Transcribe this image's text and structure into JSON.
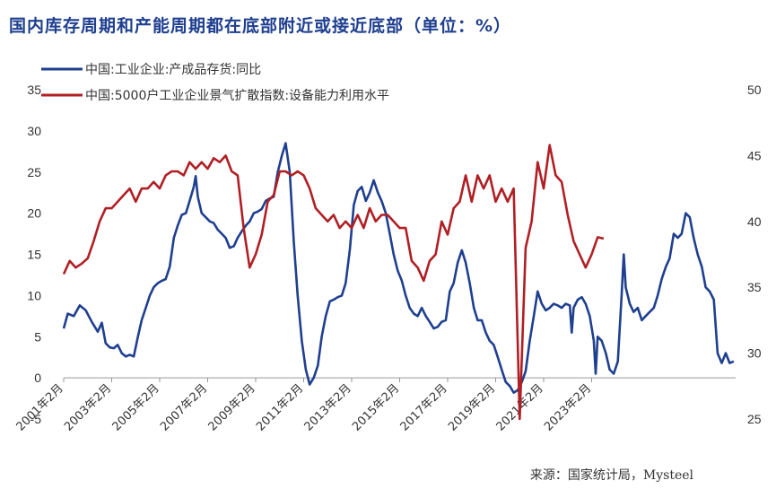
{
  "title": "国内库存周期和产能周期都在底部附近或接近底部（单位：%）",
  "source": "来源：国家统计局，Mysteel",
  "colors": {
    "series1": "#1f3f8f",
    "series2": "#b01f24",
    "axis": "#999999"
  },
  "chart_data": {
    "type": "line",
    "legend_placement": "top-left",
    "grid": false,
    "x_tick_labels": [
      "2001年2月",
      "2003年2月",
      "2005年2月",
      "2007年2月",
      "2009年2月",
      "2011年2月",
      "2013年2月",
      "2015年2月",
      "2017年2月",
      "2019年2月",
      "2021年2月",
      "2023年2月"
    ],
    "y_left": {
      "ylim": [
        -5,
        35
      ],
      "ticks": [
        -5,
        0,
        5,
        10,
        15,
        20,
        25,
        30,
        35
      ]
    },
    "y_right": {
      "ylim": [
        25,
        50
      ],
      "ticks": [
        25,
        30,
        35,
        40,
        45,
        50
      ]
    },
    "series": [
      {
        "name": "中国:工业企业:产成品存货:同比",
        "axis": "left",
        "points": [
          [
            2001.08,
            6.0
          ],
          [
            2001.25,
            7.8
          ],
          [
            2001.5,
            7.5
          ],
          [
            2001.75,
            8.8
          ],
          [
            2002.0,
            8.2
          ],
          [
            2002.25,
            6.8
          ],
          [
            2002.5,
            5.6
          ],
          [
            2002.67,
            6.7
          ],
          [
            2002.83,
            4.2
          ],
          [
            2003.0,
            3.7
          ],
          [
            2003.17,
            3.6
          ],
          [
            2003.33,
            4.0
          ],
          [
            2003.5,
            3.0
          ],
          [
            2003.67,
            2.6
          ],
          [
            2003.83,
            2.8
          ],
          [
            2004.0,
            2.6
          ],
          [
            2004.17,
            5.0
          ],
          [
            2004.33,
            7.0
          ],
          [
            2004.5,
            8.5
          ],
          [
            2004.67,
            10.0
          ],
          [
            2004.83,
            11.0
          ],
          [
            2005.0,
            11.5
          ],
          [
            2005.17,
            11.8
          ],
          [
            2005.33,
            12.0
          ],
          [
            2005.5,
            13.5
          ],
          [
            2005.67,
            17.0
          ],
          [
            2005.83,
            18.5
          ],
          [
            2006.0,
            19.8
          ],
          [
            2006.17,
            20.0
          ],
          [
            2006.33,
            21.5
          ],
          [
            2006.5,
            23.2
          ],
          [
            2006.58,
            24.5
          ],
          [
            2006.67,
            22.0
          ],
          [
            2006.83,
            20.0
          ],
          [
            2007.0,
            19.5
          ],
          [
            2007.17,
            19.0
          ],
          [
            2007.33,
            18.8
          ],
          [
            2007.5,
            18.0
          ],
          [
            2007.67,
            17.5
          ],
          [
            2007.83,
            17.0
          ],
          [
            2008.0,
            15.8
          ],
          [
            2008.17,
            16.0
          ],
          [
            2008.33,
            17.0
          ],
          [
            2008.5,
            17.8
          ],
          [
            2008.67,
            18.5
          ],
          [
            2008.83,
            19.0
          ],
          [
            2009.0,
            20.0
          ],
          [
            2009.17,
            20.2
          ],
          [
            2009.33,
            20.5
          ],
          [
            2009.5,
            21.5
          ],
          [
            2009.67,
            21.8
          ],
          [
            2009.83,
            22.0
          ],
          [
            2010.0,
            25.0
          ],
          [
            2010.17,
            27.0
          ],
          [
            2010.33,
            28.5
          ],
          [
            2010.5,
            25.0
          ],
          [
            2010.67,
            16.5
          ],
          [
            2010.83,
            10.0
          ],
          [
            2011.0,
            4.5
          ],
          [
            2011.17,
            1.0
          ],
          [
            2011.33,
            -0.8
          ],
          [
            2011.5,
            0.0
          ],
          [
            2011.67,
            1.5
          ],
          [
            2011.83,
            5.0
          ],
          [
            2012.0,
            7.5
          ],
          [
            2012.17,
            9.3
          ],
          [
            2012.33,
            9.5
          ],
          [
            2012.5,
            9.8
          ],
          [
            2012.67,
            10.0
          ],
          [
            2012.83,
            11.5
          ],
          [
            2013.0,
            15.5
          ],
          [
            2013.17,
            21.0
          ],
          [
            2013.33,
            22.7
          ],
          [
            2013.5,
            23.2
          ],
          [
            2013.67,
            21.5
          ],
          [
            2013.83,
            22.5
          ],
          [
            2014.0,
            24.0
          ],
          [
            2014.17,
            22.5
          ],
          [
            2014.33,
            21.5
          ],
          [
            2014.5,
            20.0
          ],
          [
            2014.67,
            17.5
          ],
          [
            2014.83,
            15.0
          ],
          [
            2015.0,
            13.0
          ],
          [
            2015.17,
            11.8
          ],
          [
            2015.33,
            10.0
          ],
          [
            2015.5,
            8.5
          ],
          [
            2015.67,
            7.8
          ],
          [
            2015.83,
            7.5
          ],
          [
            2016.0,
            8.5
          ],
          [
            2016.17,
            7.5
          ],
          [
            2016.33,
            6.8
          ],
          [
            2016.5,
            6.0
          ],
          [
            2016.67,
            6.2
          ],
          [
            2016.83,
            6.8
          ],
          [
            2017.0,
            7.0
          ],
          [
            2017.17,
            10.5
          ],
          [
            2017.33,
            11.5
          ],
          [
            2017.5,
            14.0
          ],
          [
            2017.67,
            15.5
          ],
          [
            2017.83,
            14.0
          ],
          [
            2018.0,
            11.5
          ],
          [
            2018.17,
            8.5
          ],
          [
            2018.33,
            7.0
          ],
          [
            2018.5,
            7.0
          ],
          [
            2018.67,
            5.5
          ],
          [
            2018.83,
            4.5
          ],
          [
            2019.0,
            4.0
          ],
          [
            2019.17,
            2.5
          ],
          [
            2019.33,
            1.0
          ],
          [
            2019.5,
            -0.5
          ],
          [
            2019.67,
            -1.0
          ],
          [
            2019.83,
            -1.8
          ],
          [
            2020.0,
            -1.5
          ],
          [
            2020.17,
            -0.5
          ],
          [
            2020.33,
            0.8
          ],
          [
            2020.5,
            4.5
          ],
          [
            2020.67,
            7.5
          ],
          [
            2020.83,
            10.5
          ],
          [
            2021.0,
            9.0
          ],
          [
            2021.17,
            8.2
          ],
          [
            2021.33,
            8.5
          ],
          [
            2021.5,
            9.0
          ],
          [
            2021.67,
            8.8
          ],
          [
            2021.83,
            8.5
          ],
          [
            2022.0,
            9.0
          ],
          [
            2022.17,
            8.8
          ],
          [
            2022.25,
            5.5
          ],
          [
            2022.33,
            8.5
          ],
          [
            2022.5,
            9.5
          ],
          [
            2022.67,
            9.8
          ],
          [
            2022.83,
            9.0
          ],
          [
            2023.0,
            7.5
          ],
          [
            2023.17,
            4.5
          ],
          [
            2023.25,
            0.5
          ],
          [
            2023.33,
            5.0
          ],
          [
            2023.5,
            4.5
          ],
          [
            2023.67,
            3.0
          ],
          [
            2023.83,
            1.0
          ],
          [
            2024.0,
            0.5
          ],
          [
            2024.17,
            2.0
          ],
          [
            2024.33,
            10.0
          ],
          [
            2024.42,
            15.0
          ],
          [
            2024.5,
            11.0
          ],
          [
            2024.67,
            9.0
          ],
          [
            2024.83,
            8.0
          ],
          [
            2025.0,
            8.5
          ],
          [
            2025.17,
            7.0
          ],
          [
            2025.33,
            7.5
          ],
          [
            2025.5,
            8.0
          ],
          [
            2025.67,
            8.5
          ],
          [
            2025.83,
            10.0
          ],
          [
            2026.0,
            12.0
          ],
          [
            2026.17,
            13.5
          ],
          [
            2026.33,
            14.5
          ],
          [
            2026.5,
            17.5
          ],
          [
            2026.67,
            17.0
          ],
          [
            2026.83,
            17.5
          ],
          [
            2027.0,
            20.0
          ],
          [
            2027.17,
            19.5
          ],
          [
            2027.33,
            17.0
          ],
          [
            2027.5,
            15.0
          ],
          [
            2027.67,
            13.5
          ],
          [
            2027.83,
            11.0
          ],
          [
            2028.0,
            10.5
          ],
          [
            2028.17,
            9.5
          ],
          [
            2028.33,
            3.0
          ],
          [
            2028.5,
            1.8
          ],
          [
            2028.67,
            3.0
          ],
          [
            2028.83,
            1.8
          ],
          [
            2029.0,
            2.0
          ]
        ]
      },
      {
        "name": "中国:5000户工业企业景气扩散指数:设备能力利用水平",
        "axis": "right",
        "points": [
          [
            2001.08,
            36.0
          ],
          [
            2001.33,
            37.0
          ],
          [
            2001.58,
            36.5
          ],
          [
            2001.83,
            36.8
          ],
          [
            2002.08,
            37.2
          ],
          [
            2002.33,
            38.5
          ],
          [
            2002.58,
            40.0
          ],
          [
            2002.83,
            41.0
          ],
          [
            2003.08,
            41.0
          ],
          [
            2003.33,
            41.5
          ],
          [
            2003.58,
            42.0
          ],
          [
            2003.83,
            42.5
          ],
          [
            2004.08,
            41.5
          ],
          [
            2004.33,
            42.5
          ],
          [
            2004.58,
            42.5
          ],
          [
            2004.83,
            43.0
          ],
          [
            2005.08,
            42.5
          ],
          [
            2005.33,
            43.5
          ],
          [
            2005.58,
            43.8
          ],
          [
            2005.83,
            43.8
          ],
          [
            2006.08,
            43.5
          ],
          [
            2006.33,
            44.5
          ],
          [
            2006.58,
            44.0
          ],
          [
            2006.83,
            44.5
          ],
          [
            2007.08,
            44.0
          ],
          [
            2007.33,
            44.8
          ],
          [
            2007.58,
            44.5
          ],
          [
            2007.83,
            45.0
          ],
          [
            2008.08,
            43.8
          ],
          [
            2008.33,
            43.5
          ],
          [
            2008.58,
            39.5
          ],
          [
            2008.83,
            36.5
          ],
          [
            2009.08,
            37.5
          ],
          [
            2009.33,
            39.0
          ],
          [
            2009.58,
            41.5
          ],
          [
            2009.83,
            42.0
          ],
          [
            2010.08,
            43.8
          ],
          [
            2010.33,
            43.8
          ],
          [
            2010.58,
            43.5
          ],
          [
            2010.83,
            43.8
          ],
          [
            2011.08,
            43.5
          ],
          [
            2011.33,
            42.5
          ],
          [
            2011.58,
            41.0
          ],
          [
            2011.83,
            40.5
          ],
          [
            2012.08,
            40.0
          ],
          [
            2012.33,
            40.5
          ],
          [
            2012.58,
            39.5
          ],
          [
            2012.83,
            40.0
          ],
          [
            2013.08,
            39.5
          ],
          [
            2013.33,
            40.5
          ],
          [
            2013.58,
            39.5
          ],
          [
            2013.83,
            41.0
          ],
          [
            2014.08,
            40.0
          ],
          [
            2014.33,
            40.5
          ],
          [
            2014.58,
            40.5
          ],
          [
            2014.83,
            40.0
          ],
          [
            2015.08,
            39.5
          ],
          [
            2015.33,
            39.5
          ],
          [
            2015.58,
            37.0
          ],
          [
            2015.83,
            36.5
          ],
          [
            2016.08,
            35.5
          ],
          [
            2016.33,
            37.0
          ],
          [
            2016.58,
            37.5
          ],
          [
            2016.83,
            40.0
          ],
          [
            2017.08,
            39.0
          ],
          [
            2017.33,
            41.0
          ],
          [
            2017.58,
            41.5
          ],
          [
            2017.83,
            43.5
          ],
          [
            2018.08,
            41.5
          ],
          [
            2018.33,
            43.5
          ],
          [
            2018.58,
            42.5
          ],
          [
            2018.83,
            43.5
          ],
          [
            2019.08,
            41.5
          ],
          [
            2019.33,
            42.5
          ],
          [
            2019.58,
            41.5
          ],
          [
            2019.83,
            42.5
          ],
          [
            2020.08,
            25.0
          ],
          [
            2020.33,
            38.0
          ],
          [
            2020.58,
            40.0
          ],
          [
            2020.83,
            44.5
          ],
          [
            2021.08,
            42.5
          ],
          [
            2021.33,
            45.8
          ],
          [
            2021.58,
            43.5
          ],
          [
            2021.83,
            43.0
          ],
          [
            2022.08,
            40.5
          ],
          [
            2022.33,
            38.5
          ],
          [
            2022.58,
            37.5
          ],
          [
            2022.83,
            36.5
          ],
          [
            2023.08,
            37.5
          ],
          [
            2023.33,
            38.8
          ],
          [
            2023.58,
            38.7
          ]
        ]
      }
    ]
  }
}
